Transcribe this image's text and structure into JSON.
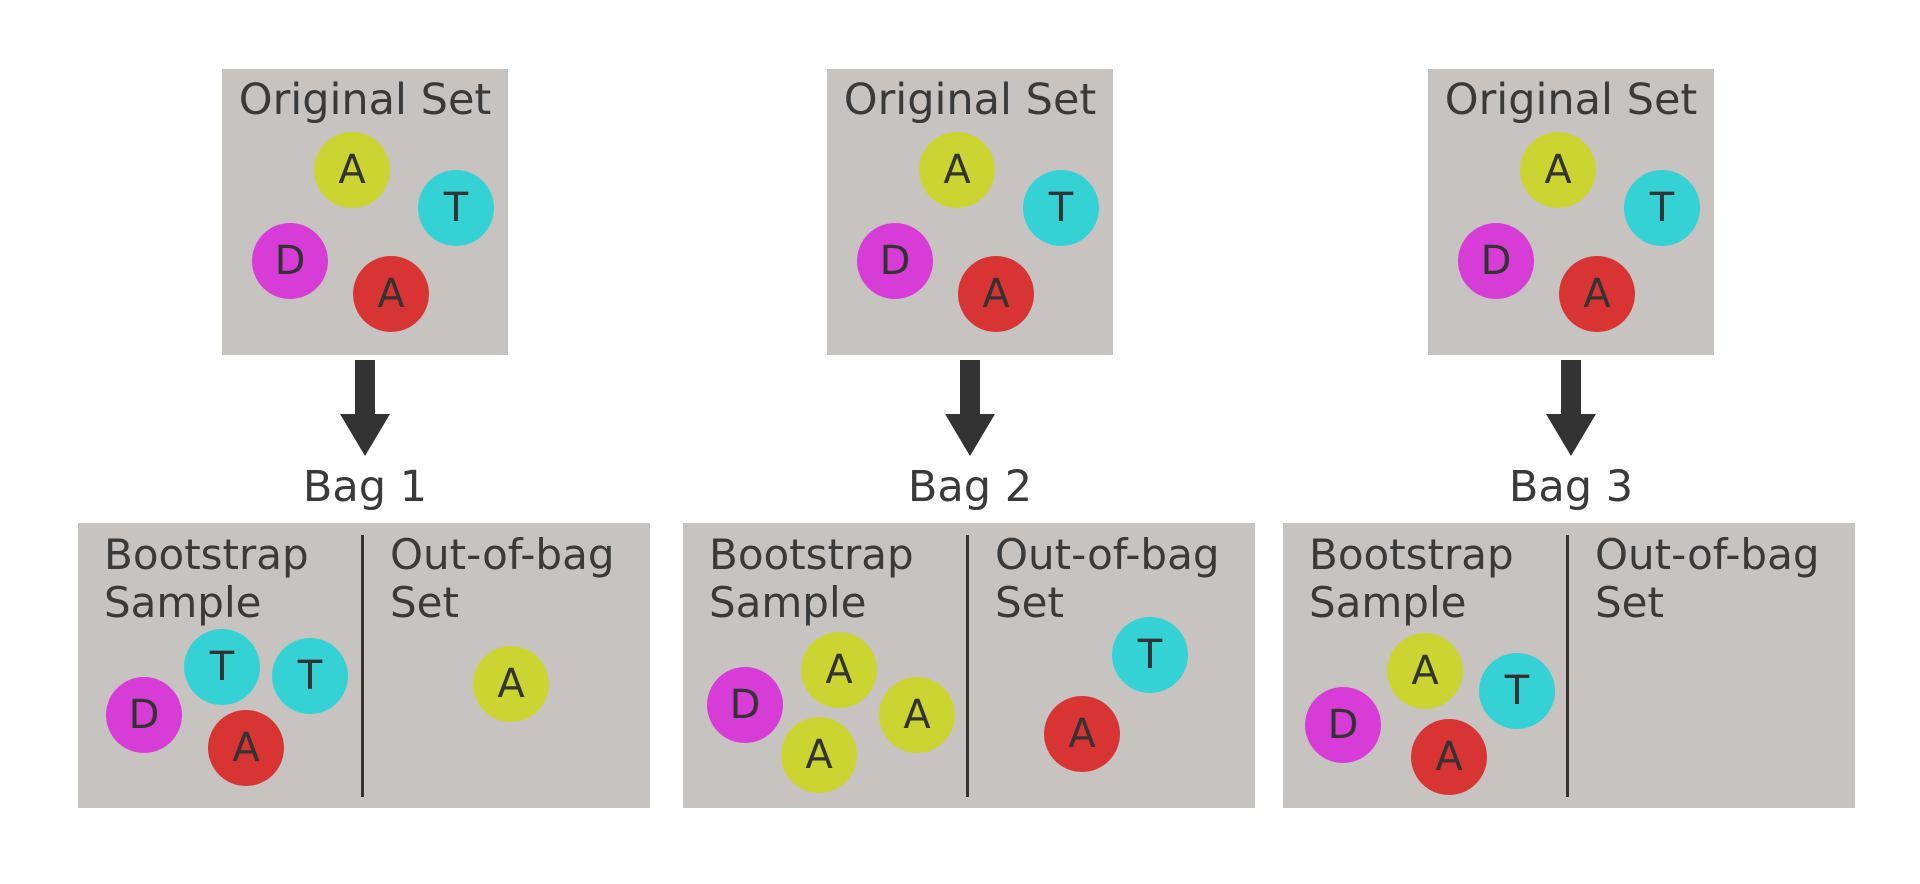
{
  "colors": {
    "background": "#ffffff",
    "box_fill": "#c6c3c0",
    "text": "#3a3a3a",
    "arrow": "#333333",
    "ball_A": "#ccd432",
    "ball_T": "#34d2d4",
    "ball_D": "#d83cd6",
    "ball_A_red": "#d83434"
  },
  "panels": [
    {
      "original_title": "Original Set",
      "original_balls": [
        "A",
        "T",
        "D",
        "A"
      ],
      "bag_label": "Bag 1",
      "bootstrap_title_line1": "Bootstrap",
      "bootstrap_title_line2": "Sample",
      "oob_title_line1": "Out-of-bag",
      "oob_title_line2": "Set",
      "bootstrap_balls": [
        "T",
        "T",
        "D",
        "A"
      ],
      "oob_balls": [
        "A"
      ]
    },
    {
      "original_title": "Original Set",
      "original_balls": [
        "A",
        "T",
        "D",
        "A"
      ],
      "bag_label": "Bag 2",
      "bootstrap_title_line1": "Bootstrap",
      "bootstrap_title_line2": "Sample",
      "oob_title_line1": "Out-of-bag",
      "oob_title_line2": "Set",
      "bootstrap_balls": [
        "A",
        "D",
        "A",
        "A"
      ],
      "oob_balls": [
        "T",
        "A"
      ]
    },
    {
      "original_title": "Original Set",
      "original_balls": [
        "A",
        "T",
        "D",
        "A"
      ],
      "bag_label": "Bag 3",
      "bootstrap_title_line1": "Bootstrap",
      "bootstrap_title_line2": "Sample",
      "oob_title_line1": "Out-of-bag",
      "oob_title_line2": "Set",
      "bootstrap_balls": [
        "A",
        "T",
        "D",
        "A"
      ],
      "oob_balls": []
    }
  ]
}
